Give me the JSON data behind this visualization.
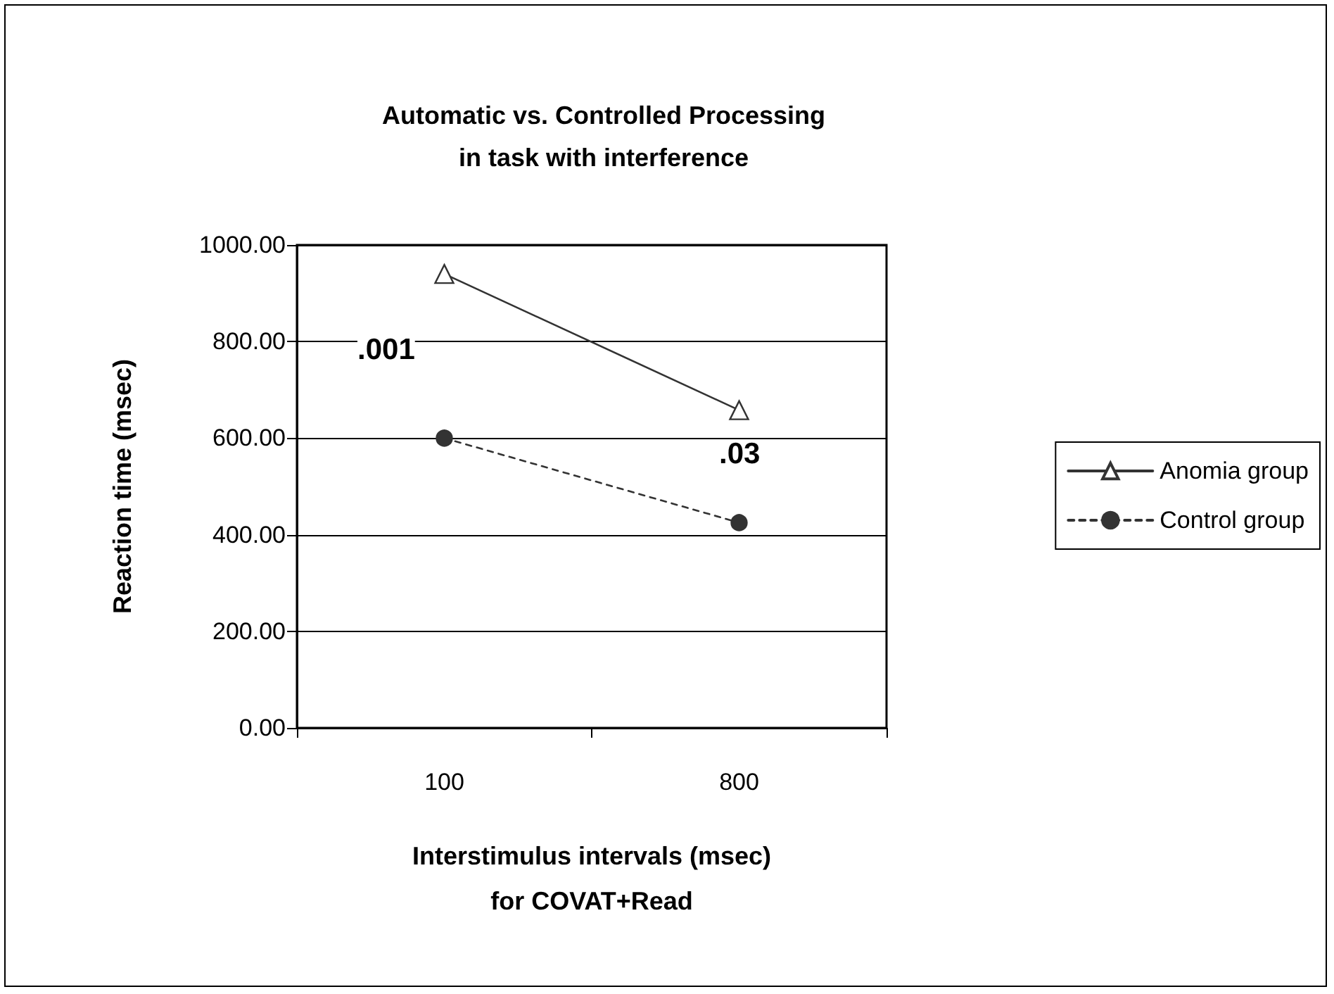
{
  "chart_data": {
    "type": "line",
    "title": "Automatic vs. Controlled Processing\nin task with interference",
    "xlabel": "Interstimulus intervals (msec)\nfor COVAT+Read",
    "ylabel": "Reaction time (msec)",
    "categories": [
      "100",
      "800"
    ],
    "series": [
      {
        "name": "Anomia group",
        "color": "#333333",
        "values": [
          940,
          658
        ],
        "marker": "triangle",
        "line_style": "solid"
      },
      {
        "name": "Control group",
        "color": "#333333",
        "values": [
          600,
          425
        ],
        "marker": "circle",
        "line_style": "dashed"
      }
    ],
    "ylim": [
      0,
      1000
    ],
    "yticks": [
      {
        "value": 0,
        "label": "0.00"
      },
      {
        "value": 200,
        "label": "200.00"
      },
      {
        "value": 400,
        "label": "400.00"
      },
      {
        "value": 600,
        "label": "600.00"
      },
      {
        "value": 800,
        "label": "800.00"
      },
      {
        "value": 1000,
        "label": "1000.00"
      }
    ],
    "grid": "y",
    "legend": "right",
    "annotations": [
      ".001",
      ".03"
    ]
  }
}
